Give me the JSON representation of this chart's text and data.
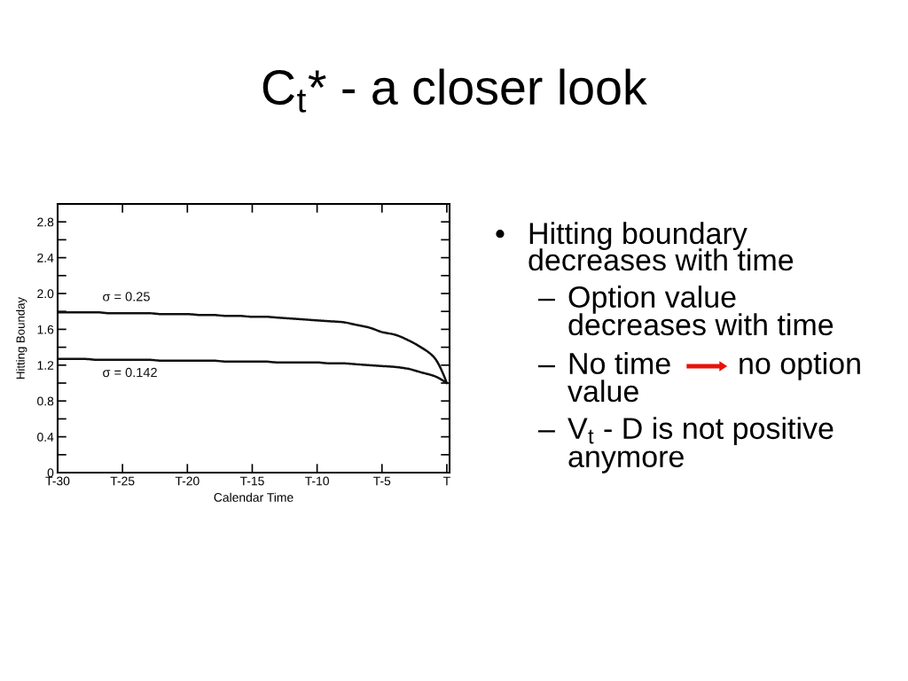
{
  "chart_data": {
    "type": "line",
    "title": "C$_{t}$* - a closer look",
    "xlabel": "Calendar Time",
    "ylabel": "Hitting Bounday",
    "categories": [
      "T-30",
      null,
      null,
      null,
      null,
      "T-25",
      null,
      null,
      null,
      null,
      "T-20",
      null,
      null,
      null,
      null,
      "T-15",
      null,
      null,
      null,
      null,
      "T-10",
      null,
      null,
      null,
      null,
      "T-5",
      null,
      null,
      null,
      null,
      "T"
    ],
    "series": [
      {
        "name": "σ = 0.25",
        "color": "#111111",
        "values": [
          1.79,
          1.79,
          1.79,
          1.79,
          1.78,
          1.78,
          1.78,
          1.78,
          1.77,
          1.77,
          1.77,
          1.76,
          1.76,
          1.75,
          1.75,
          1.74,
          1.74,
          1.73,
          1.72,
          1.71,
          1.7,
          1.69,
          1.68,
          1.65,
          1.62,
          1.57,
          1.54,
          1.48,
          1.4,
          1.29,
          1.0
        ]
      },
      {
        "name": "σ = 0.142",
        "color": "#111111",
        "values": [
          1.27,
          1.27,
          1.27,
          1.26,
          1.26,
          1.26,
          1.26,
          1.26,
          1.25,
          1.25,
          1.25,
          1.25,
          1.25,
          1.24,
          1.24,
          1.24,
          1.24,
          1.23,
          1.23,
          1.23,
          1.23,
          1.22,
          1.22,
          1.21,
          1.2,
          1.19,
          1.18,
          1.16,
          1.12,
          1.08,
          1.0
        ]
      }
    ],
    "ylim": [
      0,
      3.0
    ],
    "yticks": [
      0,
      {
        "value": 0.2,
        "label": null
      },
      0.4,
      {
        "value": 0.6,
        "label": null
      },
      0.8,
      {
        "value": 1.0,
        "label": null
      },
      1.2,
      {
        "value": 1.4,
        "label": null
      },
      1.6,
      {
        "value": 1.8,
        "label": null
      },
      {
        "value": 2.0,
        "label": "2.0"
      },
      {
        "value": 2.2,
        "label": null
      },
      2.4,
      {
        "value": 2.6,
        "label": null
      },
      2.8
    ],
    "annotations": [
      "•",
      "Hitting boundary",
      "decreases with time",
      "–",
      "Option value",
      "decreases with time",
      "–",
      "No time",
      "no option",
      "value",
      "–",
      "V$_{t}$ - D is not positive",
      "anymore"
    ]
  }
}
